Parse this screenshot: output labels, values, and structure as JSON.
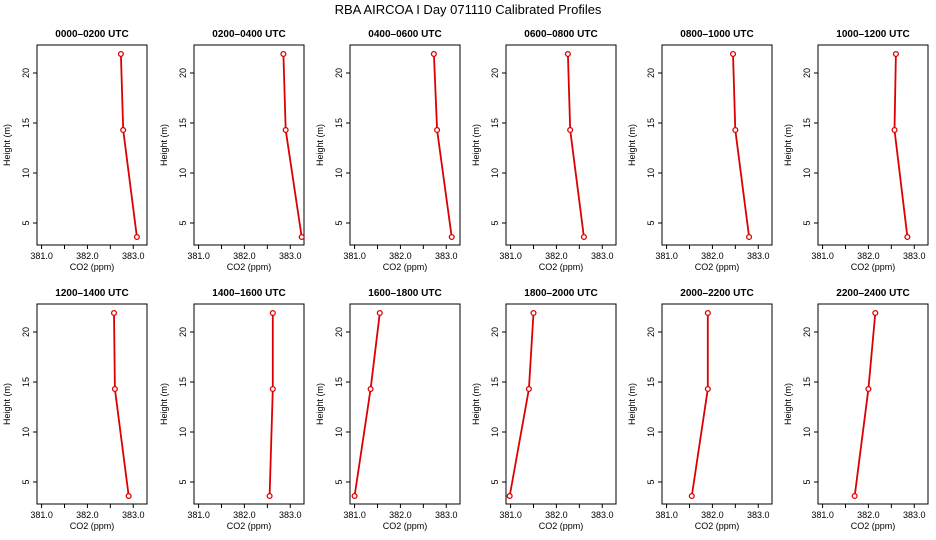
{
  "title": "RBA AIRCOA I  Day 071110  Calibrated Profiles",
  "colors": {
    "line": "#dd0000",
    "frame": "#000000"
  },
  "chart_data": [
    {
      "type": "line",
      "title": "0000–0200 UTC",
      "xlabel": "CO2 (ppm)",
      "ylabel": "Height (m)",
      "xlim": [
        380.9,
        383.3
      ],
      "ylim": [
        2.8,
        22.8
      ],
      "xticks": [
        "381.0",
        "382.0",
        "383.0"
      ],
      "yticks": [
        "5",
        "10",
        "15",
        "20"
      ],
      "x": [
        382.73,
        382.78,
        383.08
      ],
      "y": [
        21.9,
        14.3,
        3.6
      ]
    },
    {
      "type": "line",
      "title": "0200–0400 UTC",
      "xlabel": "CO2 (ppm)",
      "ylabel": "Height (m)",
      "xlim": [
        380.9,
        383.3
      ],
      "ylim": [
        2.8,
        22.8
      ],
      "xticks": [
        "381.0",
        "382.0",
        "383.0"
      ],
      "yticks": [
        "5",
        "10",
        "15",
        "20"
      ],
      "x": [
        382.85,
        382.9,
        383.25
      ],
      "y": [
        21.9,
        14.3,
        3.6
      ]
    },
    {
      "type": "line",
      "title": "0400–0600 UTC",
      "xlabel": "CO2 (ppm)",
      "ylabel": "Height (m)",
      "xlim": [
        380.9,
        383.3
      ],
      "ylim": [
        2.8,
        22.8
      ],
      "xticks": [
        "381.0",
        "382.0",
        "383.0"
      ],
      "yticks": [
        "5",
        "10",
        "15",
        "20"
      ],
      "x": [
        382.73,
        382.8,
        383.12
      ],
      "y": [
        21.9,
        14.3,
        3.6
      ]
    },
    {
      "type": "line",
      "title": "0600–0800 UTC",
      "xlabel": "CO2 (ppm)",
      "ylabel": "Height (m)",
      "xlim": [
        380.9,
        383.3
      ],
      "ylim": [
        2.8,
        22.8
      ],
      "xticks": [
        "381.0",
        "382.0",
        "383.0"
      ],
      "yticks": [
        "5",
        "10",
        "15",
        "20"
      ],
      "x": [
        382.25,
        382.3,
        382.6
      ],
      "y": [
        21.9,
        14.3,
        3.6
      ]
    },
    {
      "type": "line",
      "title": "0800–1000 UTC",
      "xlabel": "CO2 (ppm)",
      "ylabel": "Height (m)",
      "xlim": [
        380.9,
        383.3
      ],
      "ylim": [
        2.8,
        22.8
      ],
      "xticks": [
        "381.0",
        "382.0",
        "383.0"
      ],
      "yticks": [
        "5",
        "10",
        "15",
        "20"
      ],
      "x": [
        382.45,
        382.5,
        382.8
      ],
      "y": [
        21.9,
        14.3,
        3.6
      ]
    },
    {
      "type": "line",
      "title": "1000–1200 UTC",
      "xlabel": "CO2 (ppm)",
      "ylabel": "Height (m)",
      "xlim": [
        380.9,
        383.3
      ],
      "ylim": [
        2.8,
        22.8
      ],
      "xticks": [
        "381.0",
        "382.0",
        "383.0"
      ],
      "yticks": [
        "5",
        "10",
        "15",
        "20"
      ],
      "x": [
        382.6,
        382.57,
        382.85
      ],
      "y": [
        21.9,
        14.3,
        3.6
      ]
    },
    {
      "type": "line",
      "title": "1200–1400 UTC",
      "xlabel": "CO2 (ppm)",
      "ylabel": "Height (m)",
      "xlim": [
        380.9,
        383.3
      ],
      "ylim": [
        2.8,
        22.8
      ],
      "xticks": [
        "381.0",
        "382.0",
        "383.0"
      ],
      "yticks": [
        "5",
        "10",
        "15",
        "20"
      ],
      "x": [
        382.58,
        382.6,
        382.9
      ],
      "y": [
        21.9,
        14.3,
        3.6
      ]
    },
    {
      "type": "line",
      "title": "1400–1600 UTC",
      "xlabel": "CO2 (ppm)",
      "ylabel": "Height (m)",
      "xlim": [
        380.9,
        383.3
      ],
      "ylim": [
        2.8,
        22.8
      ],
      "xticks": [
        "381.0",
        "382.0",
        "383.0"
      ],
      "yticks": [
        "5",
        "10",
        "15",
        "20"
      ],
      "x": [
        382.62,
        382.62,
        382.55
      ],
      "y": [
        21.9,
        14.3,
        3.6
      ]
    },
    {
      "type": "line",
      "title": "1600–1800 UTC",
      "xlabel": "CO2 (ppm)",
      "ylabel": "Height (m)",
      "xlim": [
        380.9,
        383.3
      ],
      "ylim": [
        2.8,
        22.8
      ],
      "xticks": [
        "381.0",
        "382.0",
        "383.0"
      ],
      "yticks": [
        "5",
        "10",
        "15",
        "20"
      ],
      "x": [
        381.55,
        381.35,
        381.0
      ],
      "y": [
        21.9,
        14.3,
        3.6
      ]
    },
    {
      "type": "line",
      "title": "1800–2000 UTC",
      "xlabel": "CO2 (ppm)",
      "ylabel": "Height (m)",
      "xlim": [
        380.9,
        383.3
      ],
      "ylim": [
        2.8,
        22.8
      ],
      "xticks": [
        "381.0",
        "382.0",
        "383.0"
      ],
      "yticks": [
        "5",
        "10",
        "15",
        "20"
      ],
      "x": [
        381.5,
        381.4,
        380.98
      ],
      "y": [
        21.9,
        14.3,
        3.6
      ]
    },
    {
      "type": "line",
      "title": "2000–2200 UTC",
      "xlabel": "CO2 (ppm)",
      "ylabel": "Height (m)",
      "xlim": [
        380.9,
        383.3
      ],
      "ylim": [
        2.8,
        22.8
      ],
      "xticks": [
        "381.0",
        "382.0",
        "383.0"
      ],
      "yticks": [
        "5",
        "10",
        "15",
        "20"
      ],
      "x": [
        381.9,
        381.9,
        381.55
      ],
      "y": [
        21.9,
        14.3,
        3.6
      ]
    },
    {
      "type": "line",
      "title": "2200–2400 UTC",
      "xlabel": "CO2 (ppm)",
      "ylabel": "Height (m)",
      "xlim": [
        380.9,
        383.3
      ],
      "ylim": [
        2.8,
        22.8
      ],
      "xticks": [
        "381.0",
        "382.0",
        "383.0"
      ],
      "yticks": [
        "5",
        "10",
        "15",
        "20"
      ],
      "x": [
        382.15,
        382.0,
        381.7
      ],
      "y": [
        21.9,
        14.3,
        3.6
      ]
    }
  ]
}
